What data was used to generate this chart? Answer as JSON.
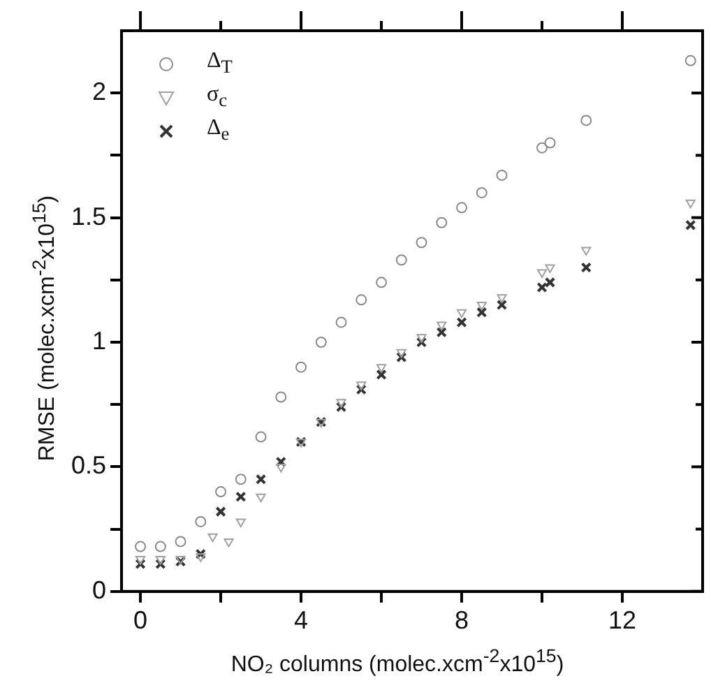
{
  "chart_data": {
    "type": "scatter",
    "xlabel": "NO₂ columns (molec.xcm$^{-2}$x10$^{15}$)",
    "ylabel": "RMSE (molec.xcm$^{-2}$x10$^{15}$)",
    "xlim": [
      -0.47,
      14
    ],
    "xticks": [
      0,
      {
        "value": 2,
        "label": null
      },
      4,
      {
        "value": 6,
        "label": null
      },
      8,
      {
        "value": 10,
        "label": null
      },
      12
    ],
    "ylim": [
      0,
      2.25
    ],
    "yticks": [
      0,
      {
        "value": 0.25,
        "label": null
      },
      0.5,
      {
        "value": 0.75,
        "label": null
      },
      1,
      {
        "value": 1.25,
        "label": null
      },
      1.5,
      {
        "value": 1.75,
        "label": null
      },
      2
    ],
    "grid": false,
    "legend": "top left",
    "series": [
      {
        "name": "Δ$_{T}$",
        "color": "#8a8a8a",
        "marker": "circle",
        "x": [
          0,
          0.5,
          1,
          1.5,
          2,
          2.5,
          3,
          3.5,
          4,
          4.5,
          5,
          5.5,
          6,
          6.5,
          7,
          7.5,
          8,
          8.5,
          9,
          10,
          10.2,
          11.1,
          13.7
        ],
        "values": [
          0.18,
          0.18,
          0.2,
          0.28,
          0.4,
          0.45,
          0.62,
          0.78,
          0.9,
          1.0,
          1.08,
          1.17,
          1.24,
          1.33,
          1.4,
          1.48,
          1.54,
          1.6,
          1.67,
          1.78,
          1.8,
          1.89,
          2.13
        ]
      },
      {
        "name": "σ$_{c}$",
        "color": "#a0a0a0",
        "marker": "triangle",
        "x": [
          0,
          0.5,
          1,
          1.5,
          1.8,
          2.2,
          2.5,
          3,
          3.5,
          4,
          4.5,
          5,
          5.5,
          6,
          6.5,
          7,
          7.5,
          8,
          8.5,
          9,
          10,
          10.2,
          11.1,
          13.7
        ],
        "values": [
          0.13,
          0.13,
          0.13,
          0.14,
          0.22,
          0.2,
          0.28,
          0.38,
          0.5,
          0.6,
          0.68,
          0.76,
          0.83,
          0.9,
          0.96,
          1.02,
          1.07,
          1.12,
          1.15,
          1.18,
          1.28,
          1.3,
          1.37,
          1.56
        ]
      },
      {
        "name": "Δ$_{e}$",
        "color": "#333333",
        "marker": "cross",
        "x": [
          0,
          0.5,
          1,
          1.5,
          2,
          2.5,
          3,
          3.5,
          4,
          4.5,
          5,
          5.5,
          6,
          6.5,
          7,
          7.5,
          8,
          8.5,
          9,
          10,
          10.2,
          11.1,
          13.7
        ],
        "values": [
          0.11,
          0.11,
          0.12,
          0.15,
          0.32,
          0.38,
          0.45,
          0.52,
          0.6,
          0.68,
          0.74,
          0.81,
          0.87,
          0.94,
          1.0,
          1.04,
          1.08,
          1.12,
          1.15,
          1.22,
          1.24,
          1.3,
          1.47
        ]
      }
    ]
  }
}
